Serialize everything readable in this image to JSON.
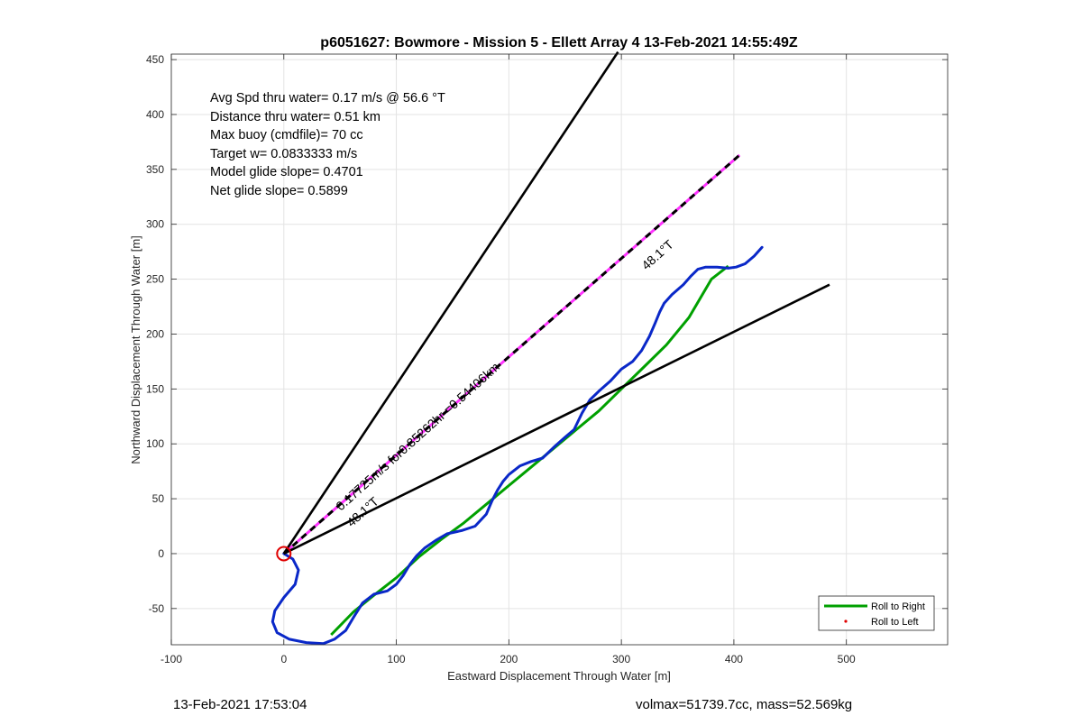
{
  "chart_data": {
    "type": "line",
    "title": "p6051627: Bowmore - Mission 5 - Ellett Array 4 13-Feb-2021 14:55:49Z",
    "xlabel": "Eastward Displacement Through Water [m]",
    "ylabel": "Northward Displacement Through Water [m]",
    "xlim": [
      -100,
      590
    ],
    "ylim": [
      -83,
      455
    ],
    "xticks": [
      -100,
      0,
      100,
      200,
      300,
      400,
      500
    ],
    "yticks": [
      -50,
      0,
      50,
      100,
      150,
      200,
      250,
      300,
      350,
      400,
      450
    ],
    "grid": true,
    "annotations": [
      "Avg Spd thru water=  0.17 m/s @  56.6 °T",
      "Distance thru water=  0.51 km",
      "Max buoy (cmdfile)= 70 cc",
      "Target w= 0.0833333 m/s",
      "Model glide slope= 0.4701",
      "Net glide slope= 0.5899"
    ],
    "line_labels": {
      "track": "0.17725m/s for0.85262hr =0.54406km",
      "heading_upper": "48.1°T",
      "heading_lower": "48.1°T"
    },
    "legend": {
      "placement": "bottom-right",
      "entries": [
        "Roll to Right",
        "Roll to Left"
      ]
    },
    "series": [
      {
        "name": "Roll to Right",
        "color": "#00a000",
        "x": [
          42,
          62,
          80,
          100,
          120,
          140,
          160,
          180,
          200,
          220,
          240,
          260,
          280,
          300,
          320,
          340,
          360,
          380,
          395
        ],
        "y": [
          -74,
          -53,
          -38,
          -22,
          -3,
          13,
          28,
          45,
          62,
          79,
          96,
          113,
          130,
          150,
          170,
          190,
          215,
          250,
          262
        ]
      },
      {
        "name": "blue track",
        "color": "#0a28c8",
        "x": [
          0,
          8,
          13,
          10,
          0,
          -8,
          -10,
          -6,
          5,
          20,
          35,
          45,
          55,
          62,
          70,
          80,
          92,
          100,
          106,
          112,
          118,
          125,
          135,
          145,
          158,
          170,
          180,
          185,
          190,
          195,
          200,
          210,
          220,
          230,
          240,
          250,
          258,
          265,
          272,
          280,
          290,
          300,
          310,
          318,
          325,
          330,
          334,
          338,
          345,
          355,
          362,
          368,
          375,
          385,
          395,
          402,
          410,
          418,
          425
        ],
        "y": [
          0,
          -5,
          -15,
          -28,
          -40,
          -52,
          -62,
          -72,
          -78,
          -81,
          -82,
          -78,
          -70,
          -58,
          -45,
          -37,
          -34,
          -28,
          -20,
          -10,
          -2,
          5,
          12,
          18,
          21,
          25,
          36,
          48,
          58,
          66,
          72,
          80,
          84,
          87,
          97,
          106,
          113,
          128,
          140,
          148,
          157,
          168,
          175,
          185,
          198,
          210,
          220,
          228,
          236,
          245,
          253,
          259,
          261,
          261,
          260,
          261,
          264,
          271,
          279
        ]
      },
      {
        "name": "glide line",
        "color": "#ff33ff",
        "x": [
          0,
          405
        ],
        "y": [
          0,
          363
        ]
      },
      {
        "name": "line upper",
        "color": "#000000",
        "x": [
          0,
          297
        ],
        "y": [
          0,
          457
        ]
      },
      {
        "name": "line lower",
        "color": "#000000",
        "x": [
          0,
          485
        ],
        "y": [
          0,
          245
        ]
      }
    ],
    "start_marker": {
      "x": 0,
      "y": 0,
      "color": "#e00000"
    }
  },
  "footer": {
    "timestamp": "13-Feb-2021 17:53:04",
    "volmax_mass": "volmax=51739.7cc, mass=52.569kg"
  }
}
